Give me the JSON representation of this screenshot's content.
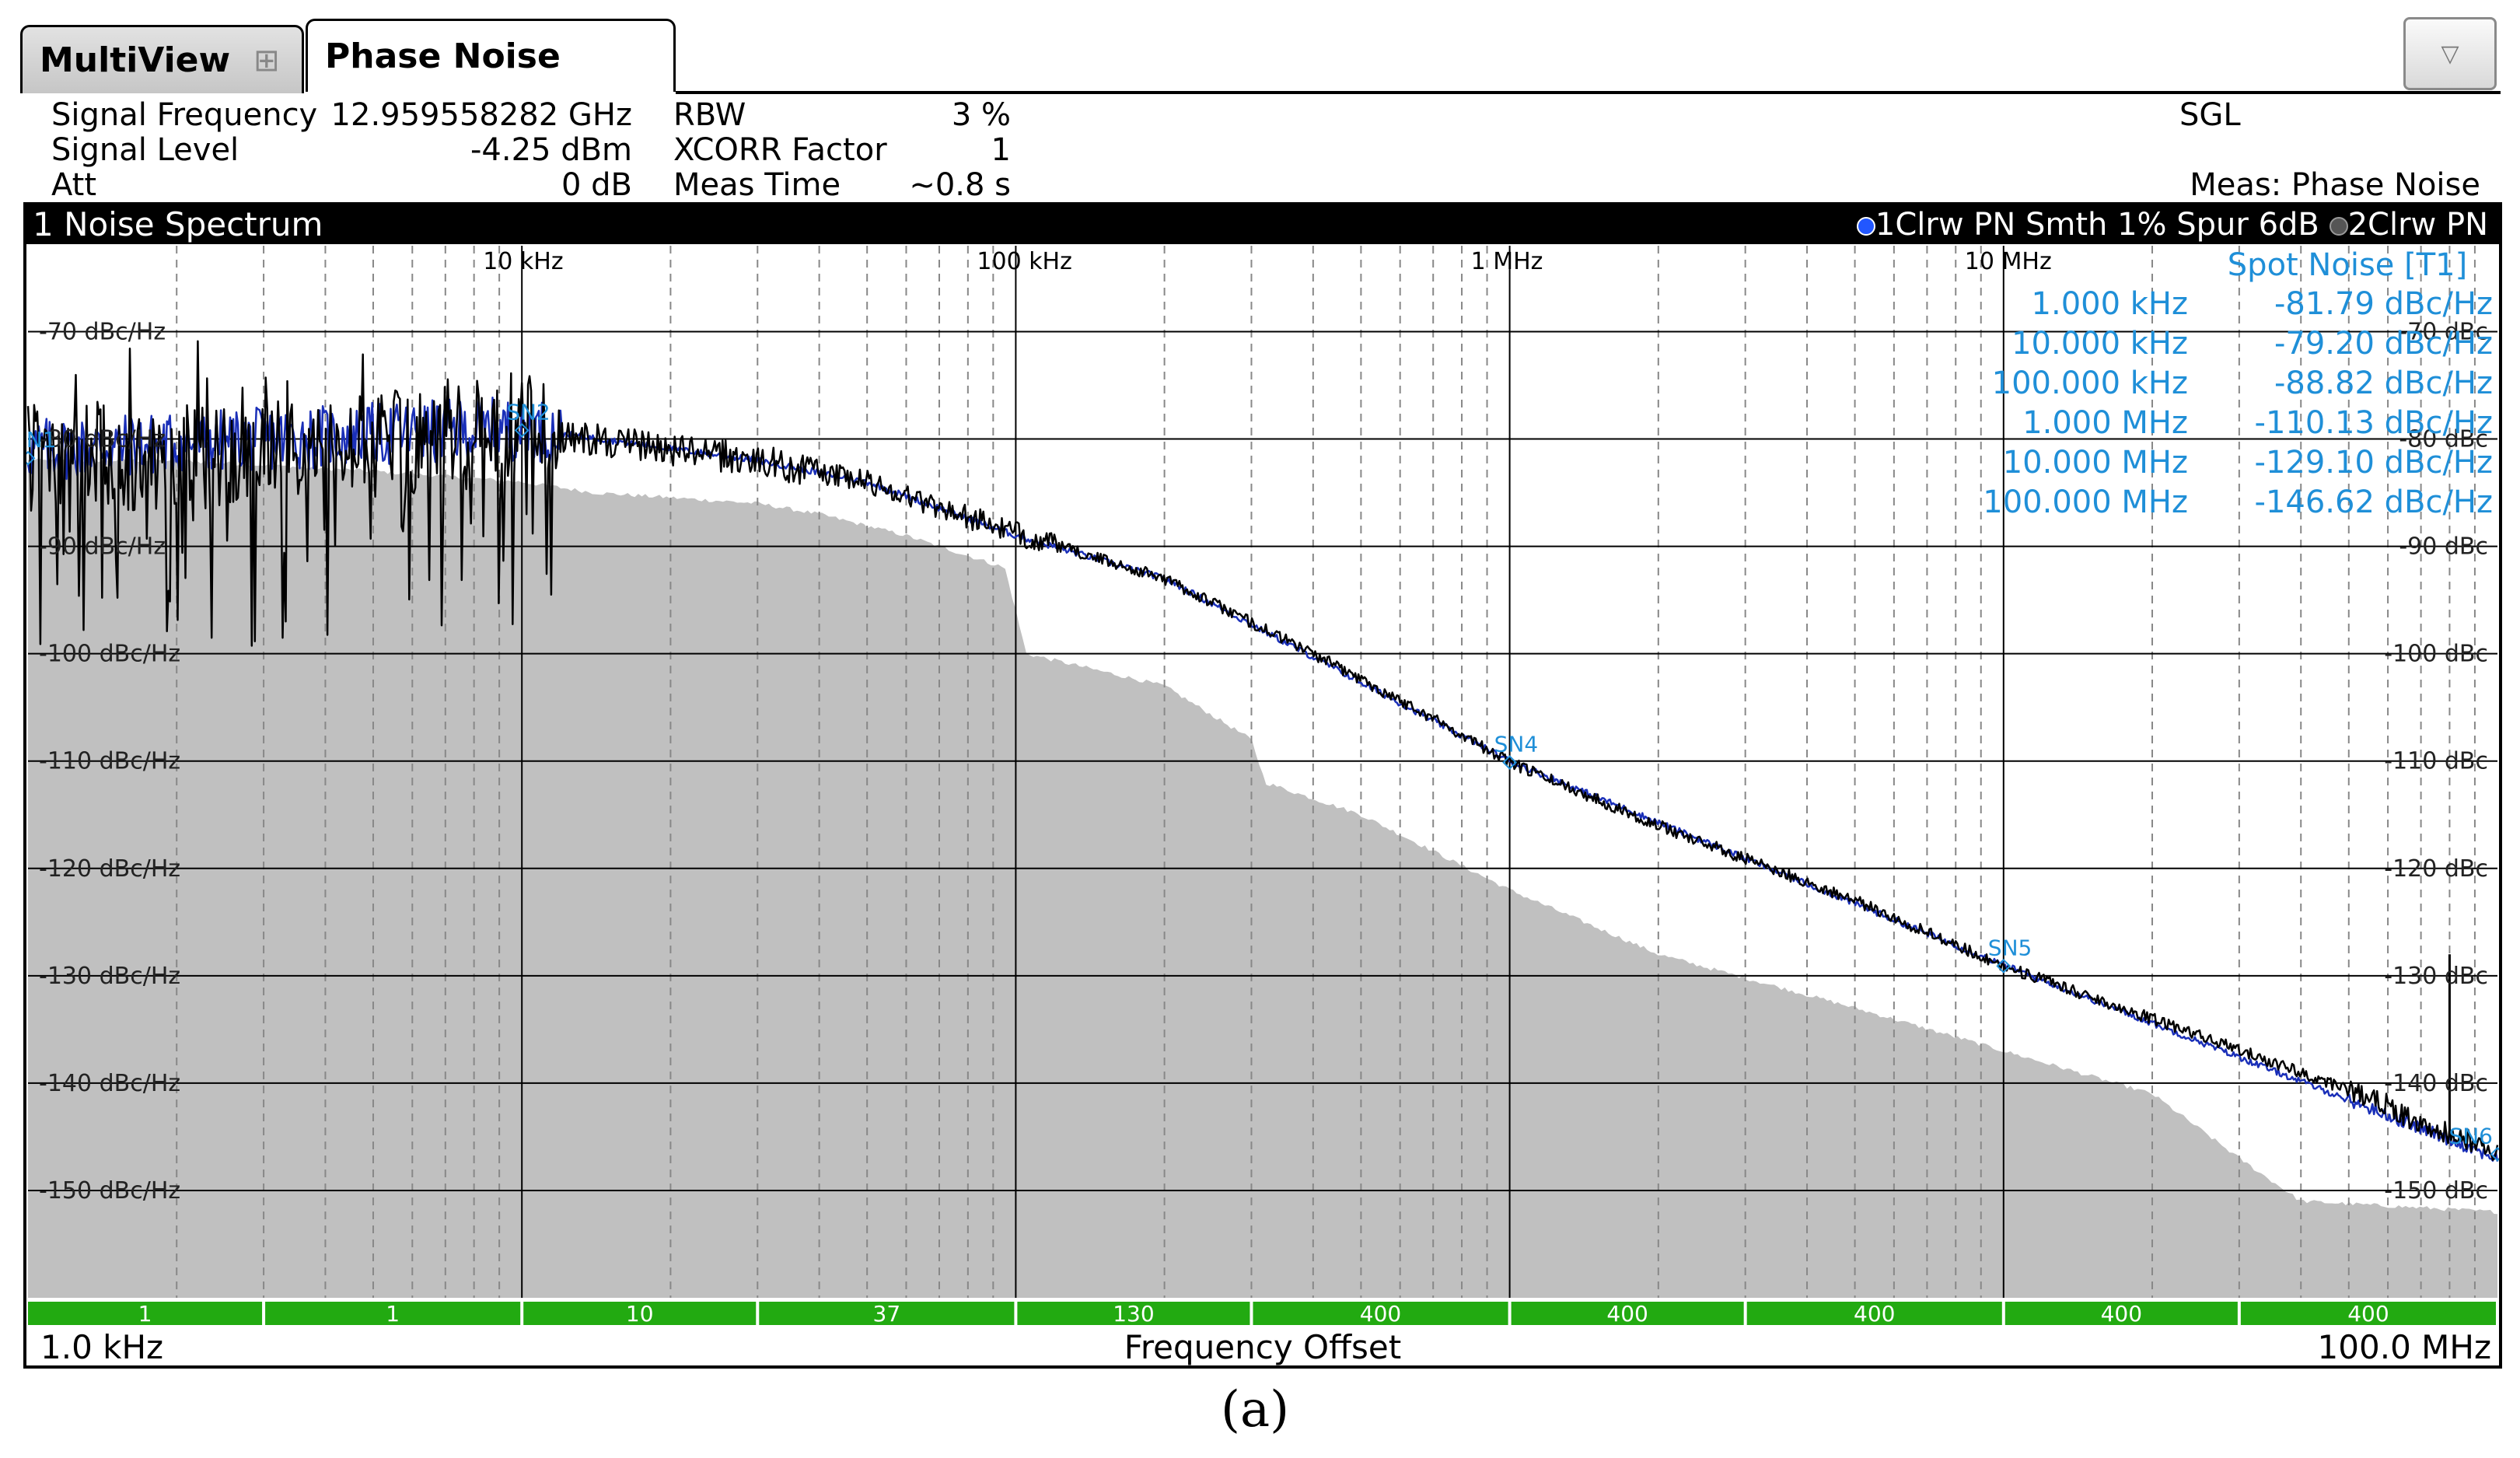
{
  "tabs": [
    {
      "label": "MultiView"
    },
    {
      "label": "Phase Noise"
    }
  ],
  "dropdown_glyph": "▽",
  "info": {
    "signal_frequency_label": "Signal Frequency",
    "signal_frequency_value": "12.959558282 GHz",
    "signal_level_label": "Signal Level",
    "signal_level_value": "-4.25 dBm",
    "att_label": "Att",
    "att_value": "0 dB",
    "rbw_label": "RBW",
    "rbw_value": "3 %",
    "xcorr_label": "XCORR Factor",
    "xcorr_value": "1",
    "meas_time_label": "Meas Time",
    "meas_time_value": "~0.8 s",
    "sgl": "SGL",
    "meas_mode": "Meas: Phase Noise"
  },
  "panel": {
    "title": "1 Noise Spectrum",
    "trace1": "1Clrw PN Smth 1% Spur 6dB",
    "trace2": "2Clrw PN"
  },
  "colors": {
    "trace_black": "#000000",
    "trace_blue": "#1a2fb8",
    "marker_cyan": "#1f8fd8",
    "floor_gray": "#c0c0c0",
    "band_green": "#22aa11"
  },
  "spot_noise": {
    "title": "Spot Noise [T1]",
    "rows": [
      {
        "freq": "1.000 kHz",
        "value": "-81.79 dBc/Hz"
      },
      {
        "freq": "10.000 kHz",
        "value": "-79.20 dBc/Hz"
      },
      {
        "freq": "100.000 kHz",
        "value": "-88.82 dBc/Hz"
      },
      {
        "freq": "1.000 MHz",
        "value": "-110.13 dBc/Hz"
      },
      {
        "freq": "10.000 MHz",
        "value": "-129.10 dBc/Hz"
      },
      {
        "freq": "100.000 MHz",
        "value": "-146.62 dBc/Hz"
      }
    ]
  },
  "bands": [
    "1",
    "1",
    "10",
    "37",
    "130",
    "400",
    "400",
    "400",
    "400",
    "400"
  ],
  "footer": {
    "start": "1.0 kHz",
    "center": "Frequency Offset",
    "stop": "100.0 MHz"
  },
  "caption": "(a)",
  "chart_data": {
    "type": "line",
    "x_scale": "log",
    "xlim_hz": [
      1000,
      100000000
    ],
    "ylim": [
      -160,
      -62
    ],
    "x_ticks": [
      "10 kHz",
      "100 kHz",
      "1 MHz",
      "10 MHz"
    ],
    "x_tick_values": [
      10000,
      100000,
      1000000,
      10000000
    ],
    "y_ticks_left": [
      "-70 dBc/Hz",
      "-80 dBc/Hz",
      "-90 dBc/Hz",
      "-100 dBc/Hz",
      "-110 dBc/Hz",
      "-120 dBc/Hz",
      "-130 dBc/Hz",
      "-140 dBc/Hz",
      "-150 dBc/Hz"
    ],
    "y_ticks_right": [
      "-70 dBc",
      "-80 dBc",
      "-90 dBc",
      "-100 dBc",
      "-110 dBc",
      "-120 dBc",
      "-130 dBc",
      "-140 dBc",
      "-150 dBc"
    ],
    "y_tick_values": [
      -70,
      -80,
      -90,
      -100,
      -110,
      -120,
      -130,
      -140,
      -150
    ],
    "series": [
      {
        "name": "1Clrw PN Smth 1% Spur 6dB",
        "x": [
          1000,
          3000,
          10000,
          20000,
          30000,
          50000,
          100000,
          200000,
          400000,
          700000,
          1000000,
          2000000,
          5000000,
          10000000,
          20000000,
          40000000,
          60000000,
          70000000,
          85000000,
          100000000
        ],
        "y": [
          -81.8,
          -81.5,
          -79.2,
          -81,
          -82,
          -84,
          -88.8,
          -93,
          -100,
          -106,
          -110.1,
          -116,
          -123,
          -129.1,
          -134,
          -139,
          -142,
          -144,
          -145,
          -146.6
        ]
      },
      {
        "name": "2Clrw PN",
        "x": [
          1000,
          10000,
          30000,
          50000,
          100000,
          200000,
          1000000,
          10000000,
          100000000
        ],
        "y": [
          -81,
          -79,
          -82,
          -84,
          -89,
          -93,
          -110,
          -129,
          -147
        ]
      },
      {
        "name": "noise floor",
        "x": [
          1000,
          2000,
          5000,
          10000,
          14000,
          30000,
          40000,
          60000,
          95000,
          100000,
          105000,
          200000,
          300000,
          320000,
          500000,
          1000000,
          2000000,
          5000000,
          10000000,
          20000000,
          30000000,
          40000000,
          100000000
        ],
        "y": [
          -82,
          -82,
          -83,
          -84,
          -85,
          -86,
          -87,
          -89,
          -92,
          -96,
          -100,
          -103,
          -108,
          -112,
          -115,
          -122,
          -128,
          -133,
          -137,
          -141,
          -147,
          -151,
          -152
        ]
      }
    ],
    "markers": [
      {
        "label": "SN1",
        "x": 1000,
        "y": -81.79
      },
      {
        "label": "SN2",
        "x": 10000,
        "y": -79.2
      },
      {
        "label": "SN4",
        "x": 1000000,
        "y": -110.13
      },
      {
        "label": "SN5",
        "x": 10000000,
        "y": -129.1
      },
      {
        "label": "SN6",
        "x": 100000000,
        "y": -146.62
      }
    ]
  }
}
